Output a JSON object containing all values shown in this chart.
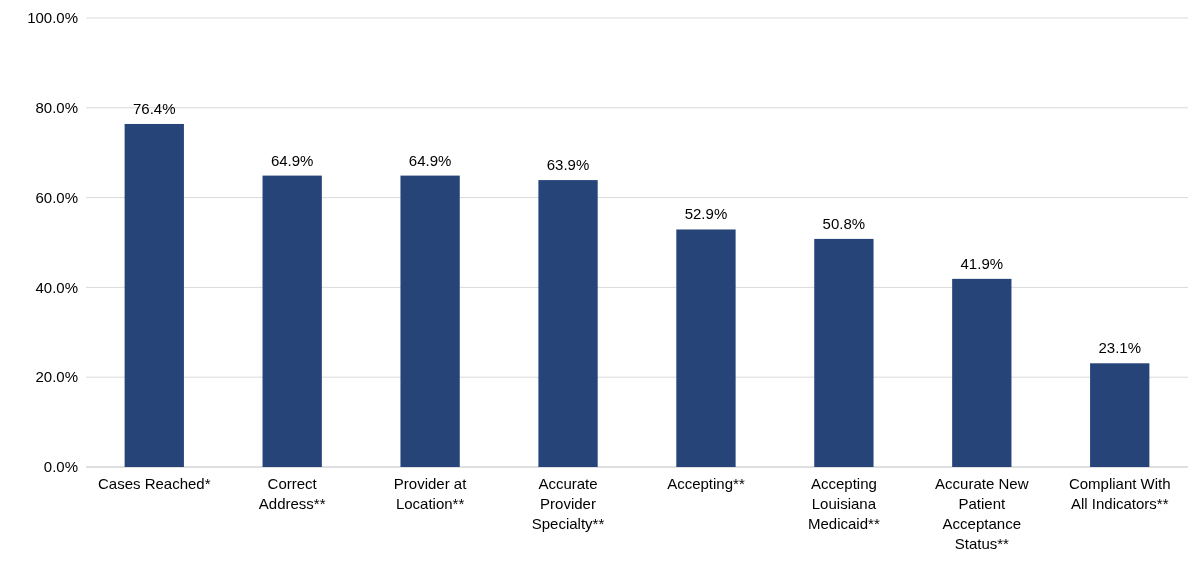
{
  "chart_data": {
    "type": "bar",
    "categories": [
      "Cases Reached*",
      "Correct Address**",
      "Provider at Location**",
      "Accurate Provider Specialty**",
      "Accepting**",
      "Accepting Louisiana Medicaid**",
      "Accurate New Patient Acceptance Status**",
      "Compliant With All Indicators**"
    ],
    "values": [
      76.4,
      64.9,
      64.9,
      63.9,
      52.9,
      50.8,
      41.9,
      23.1
    ],
    "value_labels": [
      "76.4%",
      "64.9%",
      "64.9%",
      "63.9%",
      "52.9%",
      "50.8%",
      "41.9%",
      "23.1%"
    ],
    "color": "#264478",
    "ylim": [
      0,
      100
    ],
    "yticks": [
      {
        "value": 0,
        "label": "0.0%"
      },
      {
        "value": 20,
        "label": "20.0%"
      },
      {
        "value": 40,
        "label": "40.0%"
      },
      {
        "value": 60,
        "label": "60.0%"
      },
      {
        "value": 80,
        "label": "80.0%"
      },
      {
        "value": 100,
        "label": "100.0%"
      }
    ],
    "grid": "y"
  }
}
